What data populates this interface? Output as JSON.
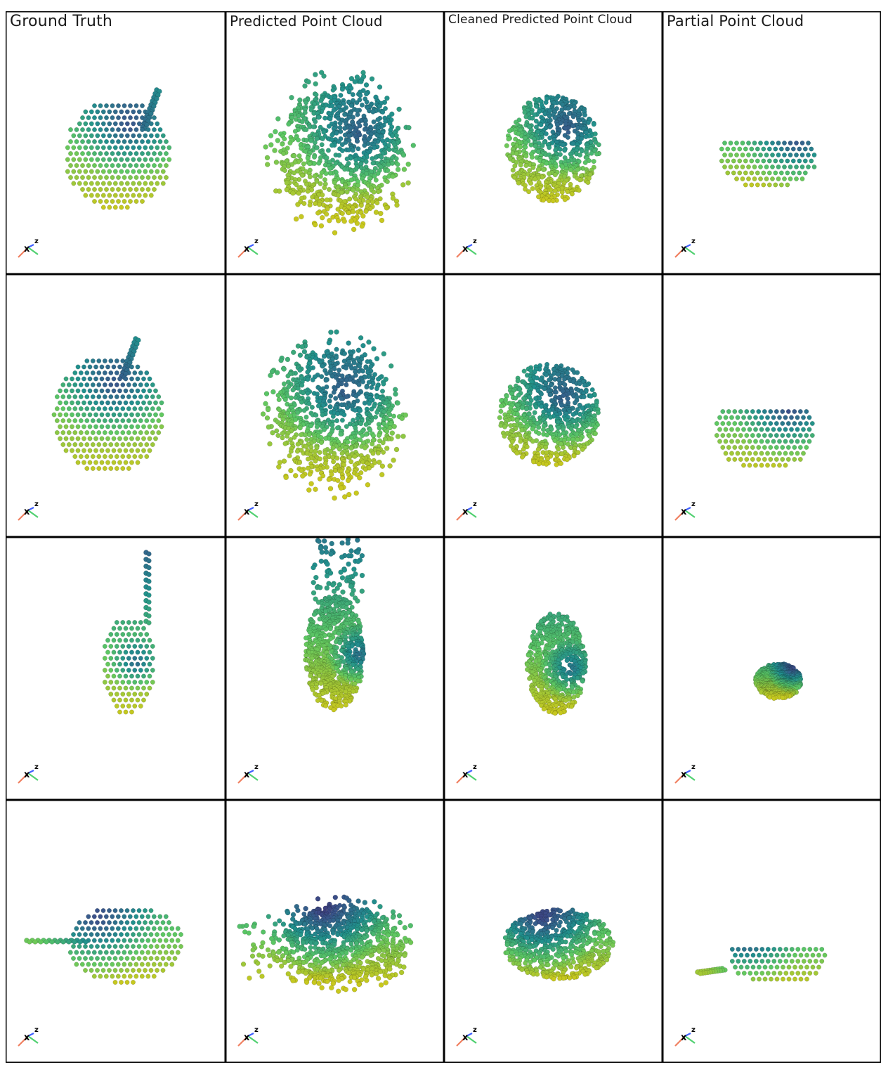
{
  "columns": [
    {
      "id": "ground-truth",
      "title": "Ground Truth"
    },
    {
      "id": "predicted",
      "title": "Predicted Point Cloud"
    },
    {
      "id": "cleaned",
      "title": "Cleaned Predicted Point Cloud"
    },
    {
      "id": "partial",
      "title": "Partial Point Cloud"
    }
  ],
  "rows": 4,
  "axes_widget": {
    "x_label": "x",
    "z_label": "z",
    "x_color": "#f08060",
    "y_color": "#50d070",
    "z_color": "#4060ff"
  },
  "colormap": {
    "name": "viridis",
    "stops": [
      "#440154",
      "#3b528b",
      "#21908d",
      "#5dc863",
      "#c8c81e"
    ]
  }
}
